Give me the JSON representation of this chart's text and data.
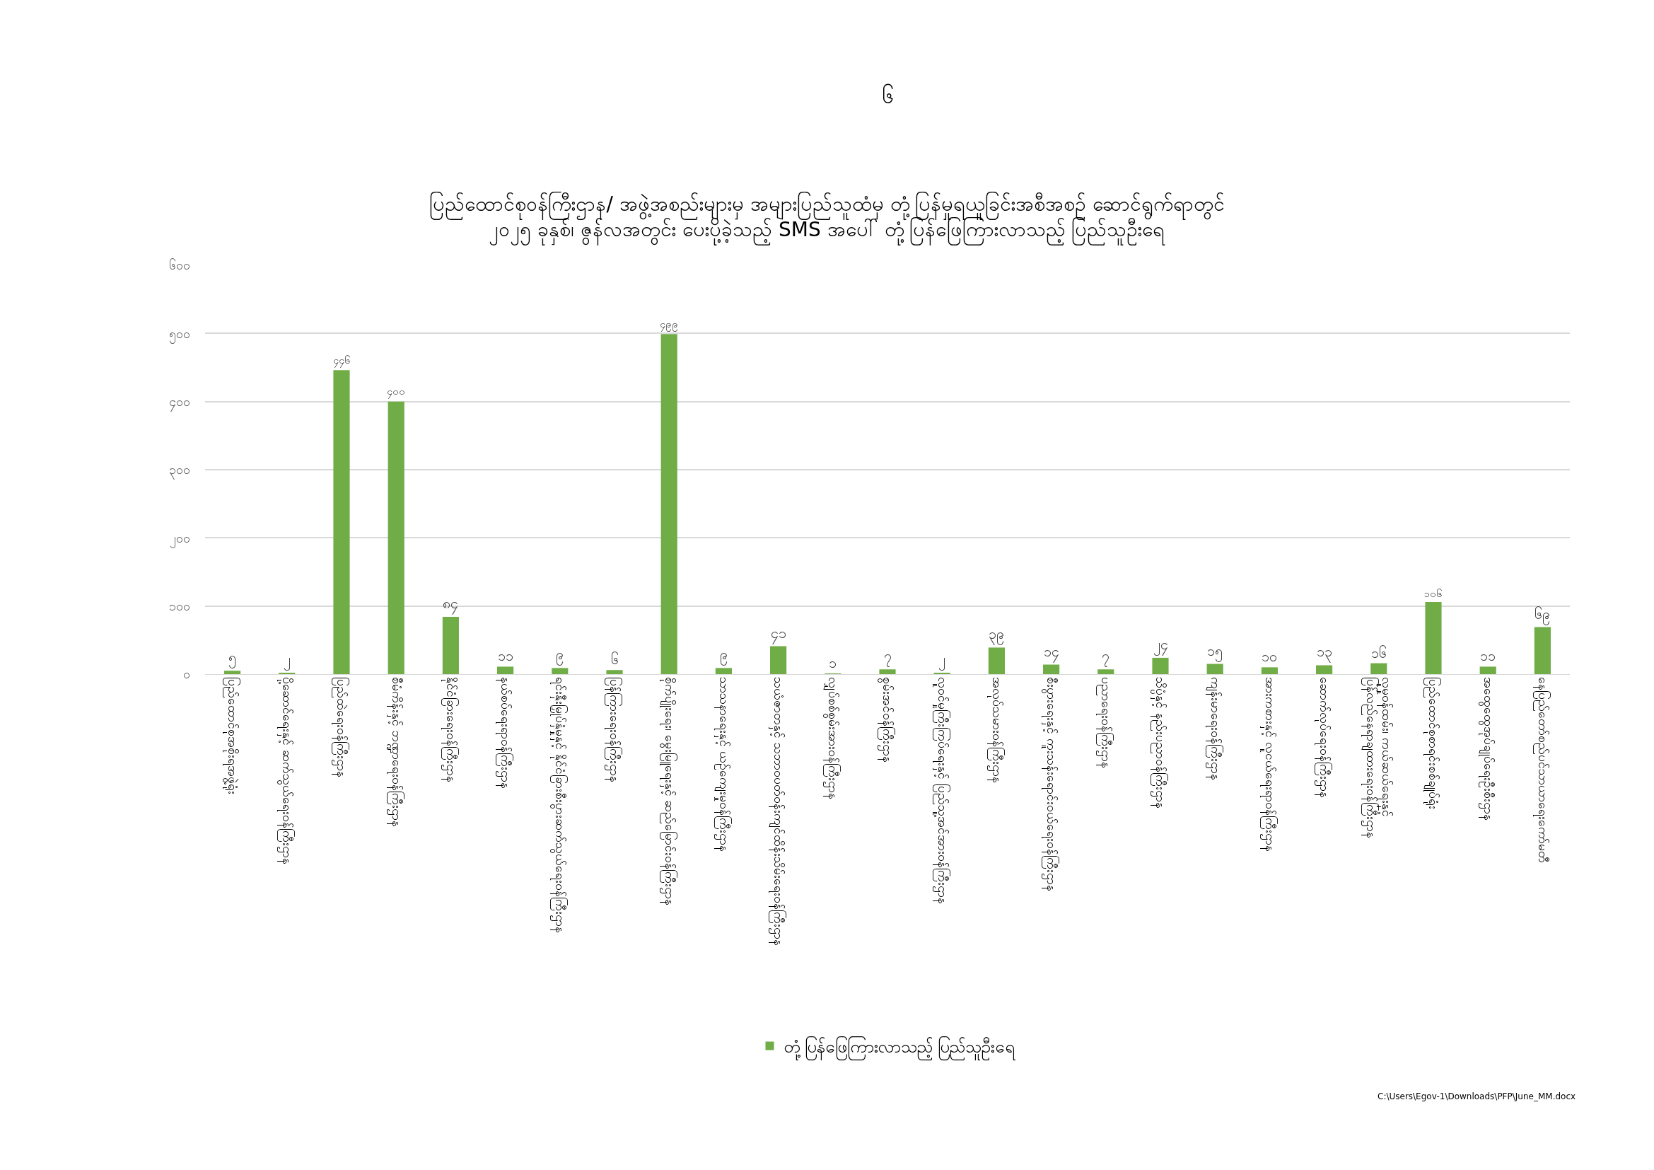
{
  "chart_data": {
    "type": "bar",
    "title": "ပြည်ထောင်စုဝန်ကြီးဌာန/ အဖွဲ့အစည်းများမှ အများပြည်သူထံမှ တုံ့ပြန်မှုရယူခြင်းအစီအစဉ် ဆောင်ရွက်ရာတွင်\n၂၀၂၅ ခုနှစ်၊ ဇွန်လအတွင်း ပေးပို့ခဲ့သည့် SMS အပေါ် တုံ့ပြန်ဖြေကြားလာသည့် ပြည်သူဦးရေ",
    "categories": [
      "ပြည်ထောင်စုအစိုးရအဖွဲ့ရုံး",
      "ပို့ဆောင်ရေးနှင့် ဆက်သွယ်ရေးဝန်ကြီးဌာန",
      "ပြည်ထဲရေးဝန်ကြီးဌာန",
      "စီမံကိန်းနှင့် ဘဏ္ဍာရေးဝန်ကြီးဌာန",
      "နိုင်ငံခြားရေးဝန်ကြီးဌာန",
      "နယ်စပ်ရေးရာဝန်ကြီးဌာန",
      "ရင်းနှီးမြှုပ်နှံမှုနှင့် နိုင်ငံခြားစီးပွားဆက်သွယ်ရေးဝန်ကြီးဌာန",
      "ပြန်ကြားရေးဝန်ကြီးဌာန",
      "စိုက်ပျိုးရေး၊ မွေးမြူရေးနှင့် ဆည်မြောင်းဝန်ကြီးဌာန",
      "သာသနာရေးနှင့် ယဉ်ကျေးမှုဝန်ကြီးဌာန",
      "သယံဇာတနှင့် သဘာဝပတ်ဝန်းကျင်ထိန်းသိမ်းရေးဝန်ကြီးဌာန",
      "လျှပ်စစ်စွမ်းအားဝန်ကြီးဌာန",
      "စွမ်းအင်ဝန်ကြီးဌာန",
      "လူဝင်မှုကြီးကြပ်ရေးနှင့် ပြည်သူ့အင်အားဝန်ကြီးဌာန",
      "အလုပ်သမားဝန်ကြီးဌာန",
      "စီးပွားရေးနှင့် ကူးသန်းရောင်းဝယ်ရေးဝန်ကြီးဌာန",
      "ပညာရေးဝန်ကြီးဌာန",
      "သိပ္ပံနှင့် နည်းပညာဝန်ကြီးဌာန",
      "ကျန်းမာရေးဝန်ကြီးဌာန",
      "အားကစားနှင့် လူငယ်ရေးရာဝန်ကြီးဌာန",
      "ဆောက်လုပ်ရေးဝန်ကြီးဌာန",
      "လူမှုဝန်ထမ်း၊ ကယ်ဆယ်ရေးနှင့်\nပြန်လည်နေရာချထားရေးဝန်ကြီးဌာန",
      "ပြည်ထောင်စုစာရင်းစစ်ချုပ်ရုံး",
      "အထွေထွေအုပ်ချုပ်ရေးဦးစီးဌာန",
      "နေပြည်တော်စည်ပင်သာယာရေးကော်မတီ"
    ],
    "series": [
      {
        "name": "တုံ့ပြန်ဖြေကြားလာသည့် ပြည်သူဦးရေ",
        "color": "#70ad47",
        "values": [
          5,
          2,
          446,
          400,
          84,
          11,
          9,
          6,
          499,
          9,
          41,
          1,
          7,
          2,
          39,
          14,
          7,
          24,
          15,
          10,
          13,
          16,
          106,
          11,
          69
        ],
        "value_labels": [
          "၅",
          "၂",
          "၄၄၆",
          "၄၀၀",
          "၈၄",
          "၁၁",
          "၉",
          "၆",
          "၄၉၉",
          "၉",
          "၄၁",
          "၁",
          "၇",
          "၂",
          "၃၉",
          "၁၄",
          "၇",
          "၂၄",
          "၁၅",
          "၁၀",
          "၁၃",
          "၁၆",
          "၁၀၆",
          "၁၁",
          "၆၉"
        ]
      }
    ],
    "ylim": [
      0,
      600
    ],
    "yticks": [
      {
        "value": 0,
        "label": "၀"
      },
      {
        "value": 100,
        "label": "၁၀၀"
      },
      {
        "value": 200,
        "label": "၂၀၀"
      },
      {
        "value": 300,
        "label": "၃၀၀"
      },
      {
        "value": 400,
        "label": "၄၀၀"
      },
      {
        "value": 500,
        "label": "၅၀၀"
      },
      {
        "value": 600,
        "label": "၆၀၀"
      }
    ],
    "grid": "y",
    "legend": "bottom",
    "annotations": [
      "၆",
      "C:\\Users\\Egov-1\\Downloads\\PFP\\June_MM.docx"
    ]
  }
}
